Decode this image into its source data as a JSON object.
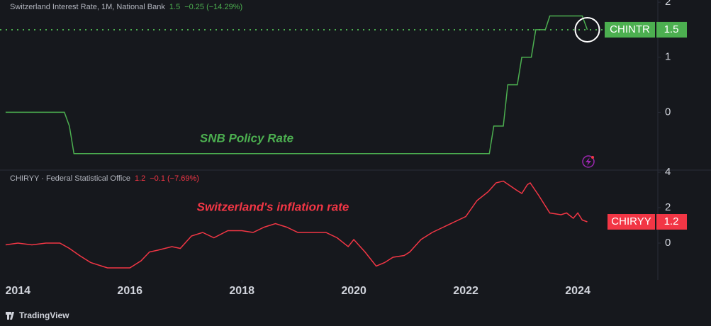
{
  "chart_data": [
    {
      "type": "line",
      "name": "CHINTR",
      "legend": "Switzerland Interest Rate, 1M, National Bank",
      "last": 1.5,
      "change": "−0.25 (−14.29%)",
      "annotation": "SNB Policy Rate",
      "color": "#4caf50",
      "x": [
        2013.78,
        2014.83,
        2014.92,
        2015.0,
        2022.42,
        2022.5,
        2022.67,
        2022.75,
        2022.92,
        2023.0,
        2023.17,
        2023.25,
        2023.42,
        2023.5,
        2024.08,
        2024.17
      ],
      "values": [
        0,
        0,
        -0.25,
        -0.75,
        -0.75,
        -0.25,
        -0.25,
        0.5,
        0.5,
        1.0,
        1.0,
        1.5,
        1.5,
        1.75,
        1.75,
        1.5
      ],
      "xlim": [
        2013.68,
        2025.43
      ],
      "ylim": [
        -1.05,
        2.04
      ],
      "yticks": [
        0,
        1,
        2
      ]
    },
    {
      "type": "line",
      "name": "CHIRYY",
      "legend": "CHIRYY · Federal Statistical Office",
      "last": 1.2,
      "change": "−0.1 (−7.69%)",
      "annotation": "Switzerland's inflation rate",
      "color": "#f23645",
      "x": [
        2013.78,
        2014.0,
        2014.25,
        2014.5,
        2014.75,
        2014.92,
        2015.1,
        2015.3,
        2015.5,
        2015.6,
        2015.8,
        2016.0,
        2016.2,
        2016.35,
        2016.5,
        2016.75,
        2016.9,
        2017.1,
        2017.3,
        2017.5,
        2017.75,
        2018.0,
        2018.2,
        2018.4,
        2018.6,
        2018.8,
        2019.0,
        2019.25,
        2019.5,
        2019.7,
        2019.9,
        2020.0,
        2020.2,
        2020.4,
        2020.55,
        2020.7,
        2020.9,
        2021.0,
        2021.2,
        2021.4,
        2021.6,
        2021.8,
        2022.0,
        2022.2,
        2022.4,
        2022.54,
        2022.67,
        2022.9,
        2023.0,
        2023.1,
        2023.15,
        2023.3,
        2023.5,
        2023.7,
        2023.8,
        2023.92,
        2024.0,
        2024.08,
        2024.17
      ],
      "values": [
        -0.1,
        0.0,
        -0.1,
        0.0,
        0.0,
        -0.3,
        -0.7,
        -1.1,
        -1.3,
        -1.4,
        -1.4,
        -1.4,
        -1.0,
        -0.5,
        -0.4,
        -0.2,
        -0.3,
        0.4,
        0.6,
        0.3,
        0.7,
        0.7,
        0.6,
        0.9,
        1.1,
        0.9,
        0.6,
        0.6,
        0.6,
        0.3,
        -0.2,
        0.2,
        -0.5,
        -1.3,
        -1.1,
        -0.8,
        -0.7,
        -0.5,
        0.2,
        0.6,
        0.9,
        1.2,
        1.5,
        2.4,
        2.9,
        3.4,
        3.5,
        3.0,
        2.8,
        3.3,
        3.4,
        2.7,
        1.7,
        1.6,
        1.7,
        1.4,
        1.7,
        1.3,
        1.2
      ],
      "xlim": [
        2013.68,
        2025.43
      ],
      "ylim": [
        -2.08,
        4.12
      ],
      "yticks": [
        0,
        2,
        4
      ],
      "xticks": [
        2014,
        2016,
        2018,
        2020,
        2022,
        2024
      ]
    }
  ],
  "footer": "TradingView"
}
